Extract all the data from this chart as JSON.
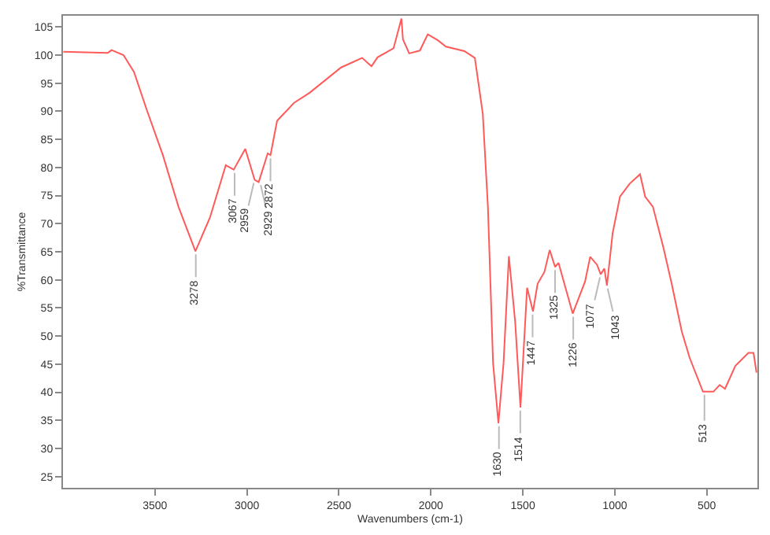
{
  "chart_data": {
    "type": "line",
    "xlabel": "Wavenumbers (cm-1)",
    "ylabel": "%Transmittance",
    "x": [
      3998,
      3756,
      3736,
      3671,
      3614,
      3543,
      3457,
      3372,
      3280,
      3201,
      3115,
      3072,
      3009,
      2958,
      2936,
      2887,
      2872,
      2836,
      2744,
      2659,
      2488,
      2374,
      2323,
      2290,
      2203,
      2160,
      2152,
      2118,
      2060,
      2017,
      1961,
      1918,
      1818,
      1761,
      1718,
      1690,
      1662,
      1633,
      1605,
      1576,
      1542,
      1513,
      1477,
      1445,
      1420,
      1383,
      1354,
      1325,
      1306,
      1229,
      1162,
      1134,
      1097,
      1077,
      1057,
      1043,
      1012,
      972,
      920,
      863,
      835,
      793,
      735,
      693,
      636,
      593,
      521,
      464,
      430,
      401,
      345,
      274,
      246,
      230
    ],
    "series": [
      {
        "color": "#ff5a5a",
        "values": [
          100.6,
          100.4,
          100.9,
          100,
          97,
          90.1,
          82.2,
          73,
          65.1,
          71.1,
          80.4,
          79.6,
          83.3,
          77.8,
          77.4,
          82.5,
          82.2,
          88.3,
          91.5,
          93.3,
          97.8,
          99.5,
          98,
          99.6,
          101.2,
          106.5,
          102.8,
          100.3,
          100.8,
          103.7,
          102.6,
          101.5,
          100.7,
          99.5,
          89.6,
          73,
          45.2,
          34.5,
          45.2,
          64.2,
          52.6,
          37.3,
          58.6,
          54.4,
          59.3,
          61.4,
          65.3,
          62.3,
          63,
          54,
          59.7,
          64.1,
          62.7,
          61,
          62,
          59,
          68.3,
          74.8,
          77.1,
          78.8,
          74.8,
          73,
          65.6,
          59.6,
          50.8,
          46.1,
          40.1,
          40.1,
          41.3,
          40.6,
          44.7,
          47,
          47,
          43.5
        ]
      }
    ],
    "xlim": [
      4000,
      225
    ],
    "xticks": [
      3500,
      3000,
      2500,
      2000,
      1500,
      1000,
      500
    ],
    "ylim": [
      23,
      107
    ],
    "yticks": [
      25,
      30,
      35,
      40,
      45,
      50,
      55,
      60,
      65,
      70,
      75,
      80,
      85,
      90,
      95,
      100,
      105
    ],
    "marker": "none",
    "line_style": "solid",
    "annotations": [
      {
        "text": "3278",
        "x": 3278,
        "y": 65.1
      },
      {
        "text": "3067",
        "x": 3067,
        "y": 79.6
      },
      {
        "text": "2959",
        "x": 2959,
        "y": 77.8
      },
      {
        "text": "2929",
        "x": 2929,
        "y": 77.4
      },
      {
        "text": "2872",
        "x": 2872,
        "y": 82.2
      },
      {
        "text": "1630",
        "x": 1630,
        "y": 34.5
      },
      {
        "text": "1514",
        "x": 1514,
        "y": 37.3
      },
      {
        "text": "1447",
        "x": 1447,
        "y": 54.4
      },
      {
        "text": "1325",
        "x": 1325,
        "y": 62.3
      },
      {
        "text": "1226",
        "x": 1226,
        "y": 54
      },
      {
        "text": "1077",
        "x": 1077,
        "y": 61
      },
      {
        "text": "1043",
        "x": 1043,
        "y": 59
      },
      {
        "text": "513",
        "x": 513,
        "y": 40.1
      }
    ]
  }
}
